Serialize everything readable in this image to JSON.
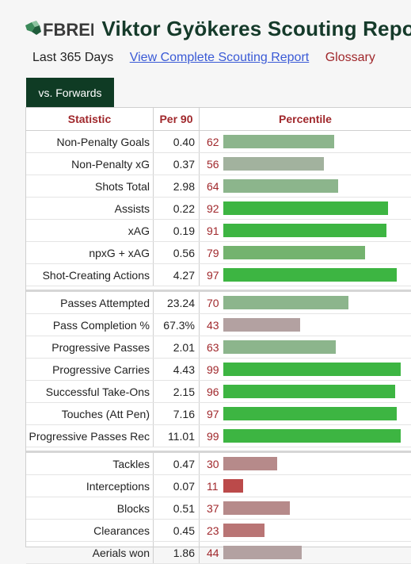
{
  "header": {
    "logo_text": "FBREF",
    "title": "Viktor Gyökeres Scouting Report"
  },
  "subnav": {
    "period": "Last 365 Days",
    "full_report_link": "View Complete Scouting Report",
    "glossary_link": "Glossary"
  },
  "tab": {
    "label": "vs. Forwards"
  },
  "table": {
    "columns": [
      "Statistic",
      "Per 90",
      "Percentile"
    ],
    "groups": [
      [
        {
          "stat": "Non-Penalty Goals",
          "per90": "0.40",
          "percentile": 62
        },
        {
          "stat": "Non-Penalty xG",
          "per90": "0.37",
          "percentile": 56
        },
        {
          "stat": "Shots Total",
          "per90": "2.98",
          "percentile": 64
        },
        {
          "stat": "Assists",
          "per90": "0.22",
          "percentile": 92
        },
        {
          "stat": "xAG",
          "per90": "0.19",
          "percentile": 91
        },
        {
          "stat": "npxG + xAG",
          "per90": "0.56",
          "percentile": 79
        },
        {
          "stat": "Shot-Creating Actions",
          "per90": "4.27",
          "percentile": 97
        }
      ],
      [
        {
          "stat": "Passes Attempted",
          "per90": "23.24",
          "percentile": 70
        },
        {
          "stat": "Pass Completion %",
          "per90": "67.3%",
          "percentile": 43
        },
        {
          "stat": "Progressive Passes",
          "per90": "2.01",
          "percentile": 63
        },
        {
          "stat": "Progressive Carries",
          "per90": "4.43",
          "percentile": 99
        },
        {
          "stat": "Successful Take-Ons",
          "per90": "2.15",
          "percentile": 96
        },
        {
          "stat": "Touches (Att Pen)",
          "per90": "7.16",
          "percentile": 97
        },
        {
          "stat": "Progressive Passes Rec",
          "per90": "11.01",
          "percentile": 99
        }
      ],
      [
        {
          "stat": "Tackles",
          "per90": "0.47",
          "percentile": 30
        },
        {
          "stat": "Interceptions",
          "per90": "0.07",
          "percentile": 11
        },
        {
          "stat": "Blocks",
          "per90": "0.51",
          "percentile": 37
        },
        {
          "stat": "Clearances",
          "per90": "0.45",
          "percentile": 23
        },
        {
          "stat": "Aerials won",
          "per90": "1.86",
          "percentile": 44
        }
      ]
    ]
  }
}
